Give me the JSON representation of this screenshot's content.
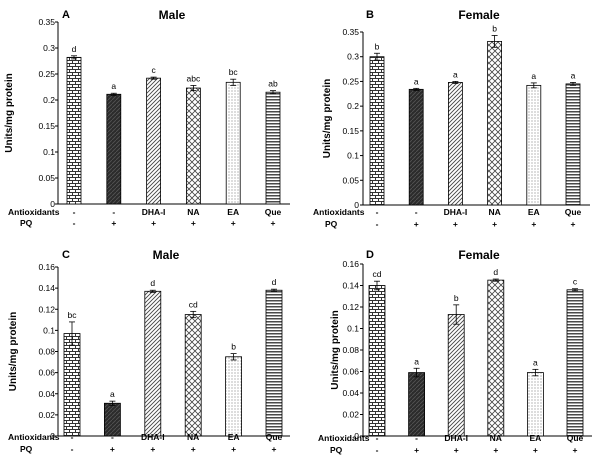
{
  "figure": {
    "row_labels": {
      "antioxidants": "Antioxidants",
      "pq": "PQ"
    }
  },
  "chart_data": [
    {
      "panel": "A",
      "title": "Male",
      "type": "bar",
      "ylabel": "Units/mg protein",
      "ylim": [
        0,
        0.35
      ],
      "yticks": [
        "0",
        "0.05",
        "0.1",
        "0.15",
        "0.2",
        "0.25",
        "0.3",
        "0.35"
      ],
      "ytick_values": [
        0,
        0.05,
        0.1,
        0.15,
        0.2,
        0.25,
        0.3,
        0.35
      ],
      "antioxidants": [
        "-",
        "-",
        "DHA-I",
        "NA",
        "EA",
        "Que"
      ],
      "pq": [
        "-",
        "+",
        "+",
        "+",
        "+",
        "+"
      ],
      "values": [
        0.282,
        0.211,
        0.242,
        0.223,
        0.234,
        0.215
      ],
      "errors": [
        0.003,
        0.002,
        0.002,
        0.005,
        0.006,
        0.003
      ],
      "labels": [
        "d",
        "a",
        "c",
        "abc",
        "bc",
        "ab"
      ],
      "patterns": [
        "bricks",
        "dark",
        "diag",
        "cross",
        "dots",
        "hlines"
      ],
      "grid": false
    },
    {
      "panel": "B",
      "title": "Female",
      "type": "bar",
      "ylabel": "Units/mg protein",
      "ylim": [
        0,
        0.35
      ],
      "yticks": [
        "0",
        "0.05",
        "0.1",
        "0.15",
        "0.2",
        "0.25",
        "0.3",
        "0.35"
      ],
      "ytick_values": [
        0,
        0.05,
        0.1,
        0.15,
        0.2,
        0.25,
        0.3,
        0.35
      ],
      "antioxidants": [
        "-",
        "-",
        "DHA-I",
        "NA",
        "EA",
        "Que"
      ],
      "pq": [
        "-",
        "+",
        "+",
        "+",
        "+",
        "+"
      ],
      "values": [
        0.3,
        0.234,
        0.248,
        0.331,
        0.242,
        0.245
      ],
      "errors": [
        0.007,
        0.002,
        0.002,
        0.012,
        0.005,
        0.003
      ],
      "labels": [
        "b",
        "a",
        "a",
        "b",
        "a",
        "a"
      ],
      "patterns": [
        "bricks",
        "dark",
        "diag",
        "cross",
        "dots",
        "hlines"
      ],
      "grid": false
    },
    {
      "panel": "C",
      "title": "Male",
      "type": "bar",
      "ylabel": "Units/mg protein",
      "ylim": [
        0,
        0.16
      ],
      "yticks": [
        "0",
        "0.02",
        "0.04",
        "0.06",
        "0.08",
        "0.1",
        "0.12",
        "0.14",
        "0.16"
      ],
      "ytick_values": [
        0,
        0.02,
        0.04,
        0.06,
        0.08,
        0.1,
        0.12,
        0.14,
        0.16
      ],
      "antioxidants": [
        "-",
        "-",
        "DHA-I",
        "NA",
        "EA",
        "Que"
      ],
      "pq": [
        "-",
        "+",
        "+",
        "+",
        "+",
        "+"
      ],
      "values": [
        0.097,
        0.031,
        0.137,
        0.115,
        0.075,
        0.138
      ],
      "errors": [
        0.011,
        0.002,
        0.001,
        0.003,
        0.003,
        0.001
      ],
      "labels": [
        "bc",
        "a",
        "d",
        "cd",
        "b",
        "d"
      ],
      "patterns": [
        "bricks",
        "dark",
        "diag",
        "cross",
        "dots",
        "hlines"
      ],
      "grid": false
    },
    {
      "panel": "D",
      "title": "Female",
      "type": "bar",
      "ylabel": "Units/mg protein",
      "ylim": [
        0,
        0.16
      ],
      "yticks": [
        "0",
        "0.02",
        "0.04",
        "0.06",
        "0.08",
        "0.1",
        "0.12",
        "0.14",
        "0.16"
      ],
      "ytick_values": [
        0,
        0.02,
        0.04,
        0.06,
        0.08,
        0.1,
        0.12,
        0.14,
        0.16
      ],
      "antioxidants": [
        "-",
        "-",
        "DHA-I",
        "NA",
        "EA",
        "Que"
      ],
      "pq": [
        "-",
        "+",
        "+",
        "+",
        "+",
        "+"
      ],
      "values": [
        0.14,
        0.059,
        0.113,
        0.145,
        0.059,
        0.136
      ],
      "errors": [
        0.004,
        0.004,
        0.009,
        0.001,
        0.003,
        0.001
      ],
      "labels": [
        "cd",
        "a",
        "b",
        "d",
        "a",
        "c"
      ],
      "patterns": [
        "bricks",
        "dark",
        "diag",
        "cross",
        "dots",
        "hlines"
      ],
      "grid": false
    }
  ]
}
